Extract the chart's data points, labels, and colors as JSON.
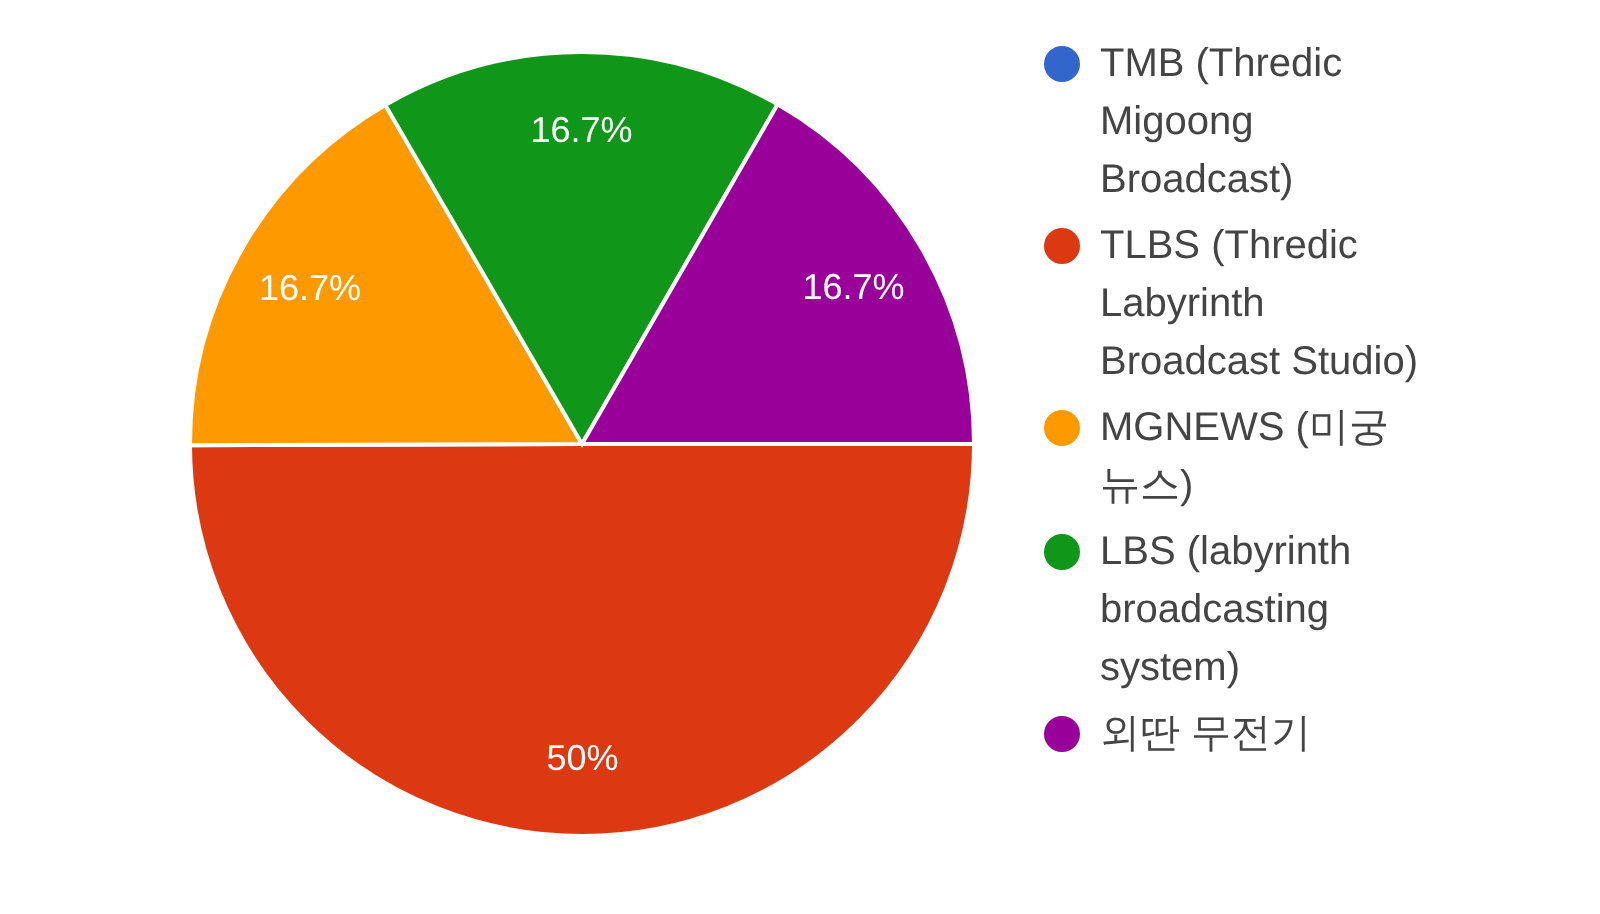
{
  "chart_data": {
    "type": "pie",
    "categories": [
      "TMB (Thredic Migoong Broadcast)",
      "TLBS (Thredic Labyrinth Broadcast Studio)",
      "MGNEWS (미궁뉴스)",
      "LBS (labyrinth broadcasting system)",
      "외딴 무전기"
    ],
    "values": [
      0,
      50,
      16.7,
      16.7,
      16.7
    ],
    "colors": [
      "#3366cc",
      "#dc3912",
      "#ff9900",
      "#109618",
      "#990099"
    ],
    "value_labels": [
      null,
      "50%",
      "16.7%",
      "16.7%",
      "16.7%"
    ],
    "legend": "right"
  }
}
